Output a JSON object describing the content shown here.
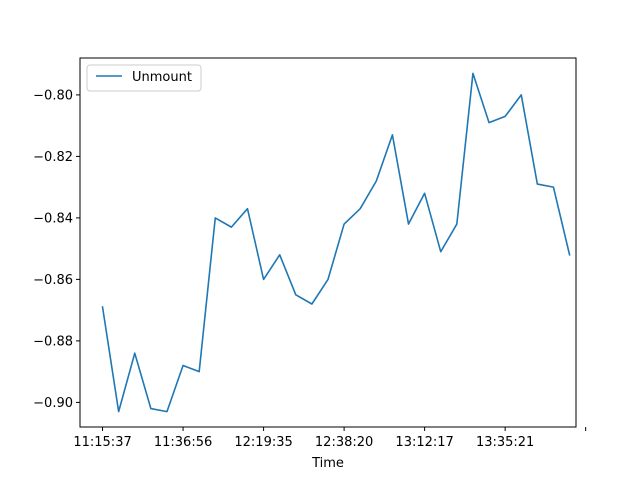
{
  "chart_data": {
    "type": "line",
    "xlabel": "Time",
    "ylabel": "",
    "ylim": [
      -0.908,
      -0.788
    ],
    "yticks": [
      -0.9,
      -0.88,
      -0.86,
      -0.84,
      -0.82,
      -0.8
    ],
    "ytick_labels": [
      "−0.90",
      "−0.88",
      "−0.86",
      "−0.84",
      "−0.82",
      "−0.80"
    ],
    "xlim": [
      -1.4,
      29.4
    ],
    "xticks": [
      0,
      5,
      10,
      15,
      20,
      25,
      30
    ],
    "xtick_labels": [
      "11:15:37",
      "11:36:56",
      "12:19:35",
      "12:38:20",
      "13:12:17",
      "13:35:21",
      ""
    ],
    "legend": {
      "location": "upper left"
    },
    "series": [
      {
        "name": "Unmount",
        "color": "#1f77b4",
        "values": [
          -0.869,
          -0.903,
          -0.884,
          -0.902,
          -0.903,
          -0.888,
          -0.89,
          -0.84,
          -0.843,
          -0.837,
          -0.86,
          -0.852,
          -0.865,
          -0.868,
          -0.86,
          -0.842,
          -0.837,
          -0.828,
          -0.813,
          -0.842,
          -0.832,
          -0.851,
          -0.842,
          -0.793,
          -0.809,
          -0.807,
          -0.8,
          -0.829,
          -0.83,
          -0.852
        ]
      }
    ]
  }
}
